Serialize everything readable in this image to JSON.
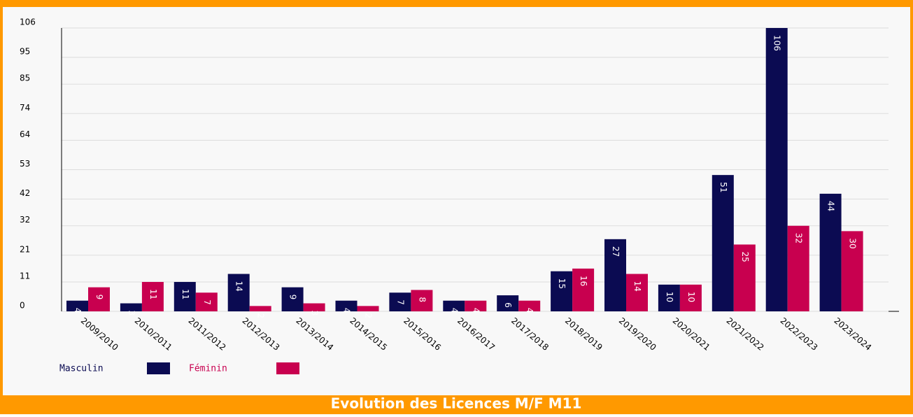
{
  "chart_data": {
    "type": "bar",
    "title": "Evolution des Licences M/F M11",
    "categories": [
      "2009/2010",
      "2010/2011",
      "2011/2012",
      "2012/2013",
      "2013/2014",
      "2014/2015",
      "2015/2016",
      "2016/2017",
      "2017/2018",
      "2018/2019",
      "2019/2020",
      "2020/2021",
      "2021/2022",
      "2022/2023",
      "2023/2024"
    ],
    "series": [
      {
        "name": "Masculin",
        "color": "#0b0b52",
        "values": [
          4,
          3,
          11,
          14,
          9,
          4,
          7,
          4,
          6,
          15,
          27,
          10,
          51,
          106,
          44
        ]
      },
      {
        "name": "Féminin",
        "color": "#c8004f",
        "values": [
          9,
          11,
          7,
          2,
          3,
          2,
          8,
          4,
          4,
          16,
          14,
          10,
          25,
          32,
          30
        ]
      }
    ],
    "ylim": [
      0,
      106
    ],
    "yticks": [
      0,
      11,
      21,
      32,
      42,
      53,
      64,
      74,
      85,
      95,
      106
    ],
    "grid": true
  }
}
